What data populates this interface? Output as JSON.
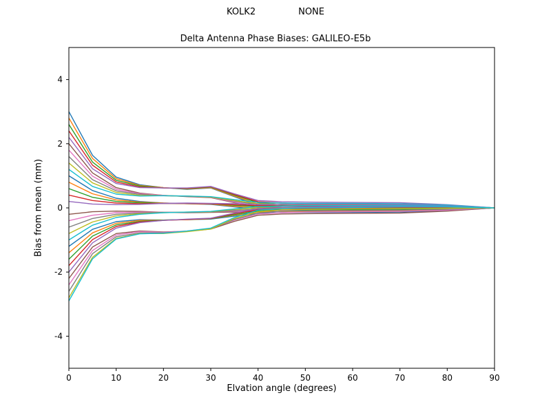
{
  "figure": {
    "header_left": "KOLK2",
    "header_right": "NONE",
    "background": "#ffffff",
    "axis_color": "#000000"
  },
  "chart_data": {
    "type": "line",
    "title": "Delta Antenna Phase Biases: GALILEO-E5b",
    "suptitle_left": "KOLK2",
    "suptitle_right": "NONE",
    "xlabel": "Elvation angle (degrees)",
    "ylabel": "Bias from mean (mm)",
    "xlim": [
      0,
      90
    ],
    "ylim": [
      -5,
      5
    ],
    "x_ticks": [
      0,
      10,
      20,
      30,
      40,
      50,
      60,
      70,
      80,
      90
    ],
    "y_ticks": [
      -4,
      -2,
      0,
      2,
      4
    ],
    "grid": false,
    "legend": "none",
    "x": [
      0,
      5,
      10,
      15,
      20,
      25,
      30,
      35,
      40,
      45,
      50,
      60,
      70,
      80,
      90
    ],
    "series": [
      {
        "color": "#1f77b4",
        "values": [
          3.0,
          1.64,
          0.96,
          0.72,
          0.63,
          0.58,
          0.62,
          0.35,
          0.08,
          0.02,
          0.01,
          -0.01,
          -0.03,
          -0.03,
          0.0
        ]
      },
      {
        "color": "#ff7f0e",
        "values": [
          2.8,
          1.54,
          0.91,
          0.7,
          0.63,
          0.59,
          0.63,
          0.37,
          0.12,
          0.06,
          0.05,
          0.03,
          0.02,
          0.01,
          0.0
        ]
      },
      {
        "color": "#2ca02c",
        "values": [
          2.6,
          1.43,
          0.86,
          0.68,
          0.62,
          0.6,
          0.65,
          0.4,
          0.16,
          0.1,
          0.09,
          0.08,
          0.07,
          0.04,
          0.0
        ]
      },
      {
        "color": "#d62728",
        "values": [
          2.4,
          1.33,
          0.81,
          0.65,
          0.62,
          0.61,
          0.66,
          0.42,
          0.19,
          0.15,
          0.13,
          0.12,
          0.11,
          0.07,
          0.0
        ]
      },
      {
        "color": "#9467bd",
        "values": [
          2.2,
          1.22,
          0.76,
          0.63,
          0.62,
          0.62,
          0.67,
          0.44,
          0.23,
          0.19,
          0.18,
          0.17,
          0.16,
          0.1,
          0.0
        ]
      },
      {
        "color": "#8c564b",
        "values": [
          2.0,
          1.09,
          0.63,
          0.46,
          0.39,
          0.35,
          0.32,
          0.16,
          0.02,
          -0.02,
          -0.03,
          -0.04,
          -0.05,
          -0.04,
          0.0
        ]
      },
      {
        "color": "#e377c2",
        "values": [
          1.8,
          0.99,
          0.58,
          0.44,
          0.39,
          0.36,
          0.33,
          0.18,
          0.06,
          0.02,
          0.01,
          0.0,
          -0.01,
          -0.01,
          0.0
        ]
      },
      {
        "color": "#7f7f7f",
        "values": [
          1.6,
          0.88,
          0.53,
          0.42,
          0.38,
          0.36,
          0.34,
          0.21,
          0.1,
          0.06,
          0.06,
          0.05,
          0.04,
          0.02,
          0.0
        ]
      },
      {
        "color": "#bcbd22",
        "values": [
          1.4,
          0.78,
          0.48,
          0.39,
          0.38,
          0.37,
          0.34,
          0.23,
          0.13,
          0.11,
          0.1,
          0.09,
          0.09,
          0.06,
          0.0
        ]
      },
      {
        "color": "#17becf",
        "values": [
          1.2,
          0.67,
          0.43,
          0.37,
          0.38,
          0.37,
          0.35,
          0.26,
          0.17,
          0.15,
          0.14,
          0.14,
          0.13,
          0.09,
          0.0
        ]
      },
      {
        "color": "#1f77b4",
        "values": [
          1.0,
          0.54,
          0.3,
          0.2,
          0.15,
          0.13,
          0.11,
          0.03,
          -0.04,
          -0.06,
          -0.07,
          -0.07,
          -0.08,
          -0.06,
          0.0
        ]
      },
      {
        "color": "#ff7f0e",
        "values": [
          0.8,
          0.44,
          0.25,
          0.18,
          0.15,
          0.13,
          0.12,
          0.05,
          0.0,
          -0.02,
          -0.02,
          -0.03,
          -0.03,
          -0.02,
          0.0
        ]
      },
      {
        "color": "#2ca02c",
        "values": [
          0.6,
          0.33,
          0.2,
          0.16,
          0.14,
          0.14,
          0.13,
          0.08,
          0.04,
          0.02,
          0.02,
          0.02,
          0.02,
          0.01,
          0.0
        ]
      },
      {
        "color": "#d62728",
        "values": [
          0.4,
          0.23,
          0.15,
          0.13,
          0.14,
          0.14,
          0.13,
          0.1,
          0.07,
          0.07,
          0.06,
          0.06,
          0.06,
          0.04,
          0.0
        ]
      },
      {
        "color": "#9467bd",
        "values": [
          0.2,
          0.12,
          0.1,
          0.11,
          0.14,
          0.15,
          0.14,
          0.13,
          0.11,
          0.11,
          0.11,
          0.11,
          0.11,
          0.07,
          0.0
        ]
      },
      {
        "color": "#8c564b",
        "values": [
          -0.2,
          -0.12,
          -0.1,
          -0.11,
          -0.14,
          -0.15,
          -0.14,
          -0.13,
          -0.11,
          -0.11,
          -0.11,
          -0.11,
          -0.11,
          -0.07,
          0.0
        ]
      },
      {
        "color": "#e377c2",
        "values": [
          -0.4,
          -0.23,
          -0.15,
          -0.13,
          -0.14,
          -0.14,
          -0.13,
          -0.1,
          -0.07,
          -0.07,
          -0.06,
          -0.06,
          -0.06,
          -0.04,
          0.0
        ]
      },
      {
        "color": "#7f7f7f",
        "values": [
          -0.6,
          -0.33,
          -0.2,
          -0.16,
          -0.14,
          -0.14,
          -0.13,
          -0.08,
          -0.04,
          -0.02,
          -0.02,
          -0.02,
          -0.02,
          -0.01,
          0.0
        ]
      },
      {
        "color": "#bcbd22",
        "values": [
          -0.8,
          -0.44,
          -0.25,
          -0.18,
          -0.15,
          -0.13,
          -0.12,
          -0.05,
          0.0,
          0.02,
          0.02,
          0.03,
          0.03,
          0.02,
          0.0
        ]
      },
      {
        "color": "#17becf",
        "values": [
          -1.0,
          -0.54,
          -0.3,
          -0.2,
          -0.15,
          -0.13,
          -0.11,
          -0.03,
          0.04,
          0.06,
          0.07,
          0.07,
          0.08,
          0.06,
          0.0
        ]
      },
      {
        "color": "#1f77b4",
        "values": [
          -1.2,
          -0.67,
          -0.43,
          -0.37,
          -0.38,
          -0.37,
          -0.35,
          -0.26,
          -0.17,
          -0.15,
          -0.14,
          -0.14,
          -0.13,
          -0.09,
          0.0
        ]
      },
      {
        "color": "#ff7f0e",
        "values": [
          -1.4,
          -0.78,
          -0.48,
          -0.39,
          -0.38,
          -0.37,
          -0.34,
          -0.23,
          -0.13,
          -0.11,
          -0.1,
          -0.09,
          -0.09,
          -0.06,
          0.0
        ]
      },
      {
        "color": "#2ca02c",
        "values": [
          -1.6,
          -0.88,
          -0.53,
          -0.42,
          -0.38,
          -0.36,
          -0.34,
          -0.21,
          -0.1,
          -0.06,
          -0.06,
          -0.05,
          -0.04,
          -0.02,
          0.0
        ]
      },
      {
        "color": "#d62728",
        "values": [
          -1.8,
          -0.99,
          -0.58,
          -0.44,
          -0.39,
          -0.36,
          -0.33,
          -0.18,
          -0.06,
          -0.02,
          -0.01,
          0.0,
          0.01,
          0.01,
          0.0
        ]
      },
      {
        "color": "#9467bd",
        "values": [
          -2.0,
          -1.09,
          -0.63,
          -0.46,
          -0.39,
          -0.35,
          -0.32,
          -0.16,
          -0.02,
          0.02,
          0.03,
          0.04,
          0.05,
          0.04,
          0.0
        ]
      },
      {
        "color": "#8c564b",
        "values": [
          -2.2,
          -1.22,
          -0.8,
          -0.72,
          -0.75,
          -0.73,
          -0.66,
          -0.42,
          -0.23,
          -0.19,
          -0.18,
          -0.17,
          -0.16,
          -0.1,
          0.0
        ]
      },
      {
        "color": "#e377c2",
        "values": [
          -2.4,
          -1.33,
          -0.85,
          -0.74,
          -0.76,
          -0.72,
          -0.64,
          -0.38,
          -0.19,
          -0.15,
          -0.13,
          -0.12,
          -0.11,
          -0.07,
          0.0
        ]
      },
      {
        "color": "#7f7f7f",
        "values": [
          -2.6,
          -1.43,
          -0.9,
          -0.78,
          -0.78,
          -0.73,
          -0.65,
          -0.36,
          -0.16,
          -0.1,
          -0.09,
          -0.08,
          -0.07,
          -0.04,
          0.0
        ]
      },
      {
        "color": "#bcbd22",
        "values": [
          -2.8,
          -1.54,
          -0.95,
          -0.8,
          -0.8,
          -0.74,
          -0.66,
          -0.33,
          -0.12,
          -0.06,
          -0.05,
          -0.03,
          -0.02,
          -0.01,
          0.0
        ]
      },
      {
        "color": "#17becf",
        "values": [
          -2.9,
          -1.59,
          -0.97,
          -0.81,
          -0.79,
          -0.72,
          -0.63,
          -0.3,
          -0.07,
          -0.02,
          0.0,
          0.01,
          0.03,
          0.03,
          0.0
        ]
      }
    ]
  }
}
